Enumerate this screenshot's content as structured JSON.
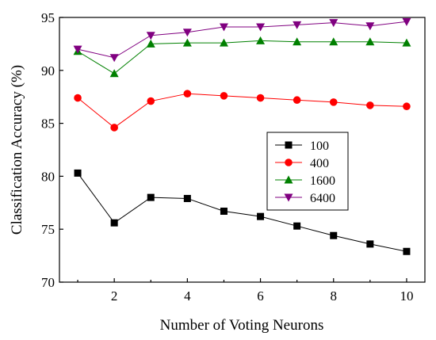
{
  "chart_data": {
    "type": "line",
    "xlabel": "Number of Voting Neurons",
    "ylabel": "Classification Accuracy (%)",
    "xlim": [
      0.5,
      10.5
    ],
    "ylim": [
      70,
      95
    ],
    "xticks": [
      2,
      4,
      6,
      8,
      10
    ],
    "yticks": [
      70,
      75,
      80,
      85,
      90,
      95
    ],
    "grid": false,
    "legend_position": "center-right",
    "x": [
      1,
      2,
      3,
      4,
      5,
      6,
      7,
      8,
      9,
      10
    ],
    "series": [
      {
        "name": "100",
        "color": "#000000",
        "marker": "square",
        "values": [
          80.3,
          75.6,
          78.0,
          77.9,
          76.7,
          76.2,
          75.3,
          74.4,
          73.6,
          72.9
        ]
      },
      {
        "name": "400",
        "color": "#ff0000",
        "marker": "circle",
        "values": [
          87.4,
          84.6,
          87.1,
          87.8,
          87.6,
          87.4,
          87.2,
          87.0,
          86.7,
          86.6
        ]
      },
      {
        "name": "1600",
        "color": "#008000",
        "marker": "triangle-up",
        "values": [
          91.8,
          89.7,
          92.5,
          92.6,
          92.6,
          92.8,
          92.7,
          92.7,
          92.7,
          92.6
        ]
      },
      {
        "name": "6400",
        "color": "#800080",
        "marker": "triangle-down",
        "values": [
          92.0,
          91.2,
          93.3,
          93.6,
          94.1,
          94.1,
          94.3,
          94.5,
          94.2,
          94.6
        ]
      }
    ]
  }
}
